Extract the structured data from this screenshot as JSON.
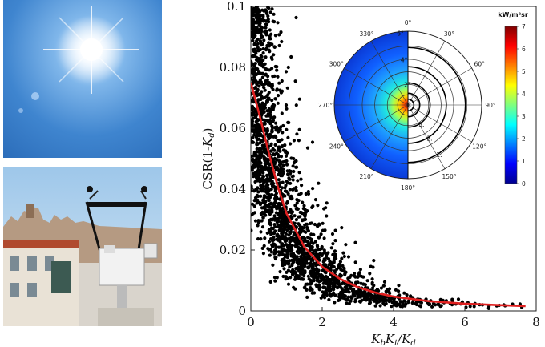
{
  "photos": [
    {
      "name": "sky-sun-photo"
    },
    {
      "name": "measurement-station-photo"
    }
  ],
  "chart_data": [
    {
      "type": "scatter",
      "xlabel": "K_b K_t / K_d",
      "ylabel": "CSR(1-K_d)",
      "xlim": [
        0,
        8
      ],
      "ylim": [
        0,
        0.1
      ],
      "x_ticks": [
        "0",
        "2",
        "4",
        "6",
        "8"
      ],
      "y_ticks": [
        "0",
        "0.02",
        "0.04",
        "0.06",
        "0.08",
        "0.1"
      ],
      "grid": false,
      "series": [
        {
          "kind": "points",
          "color": "#000000",
          "n_points": 2200,
          "description_of_distribution": "dense cloud decaying with x, spreading from ~0.1 near x=0 to ~0.002 at x=8"
        },
        {
          "kind": "fit-line",
          "color": "#e02020",
          "x": [
            0,
            0.25,
            0.5,
            0.75,
            1,
            1.5,
            2,
            2.5,
            3,
            3.5,
            4,
            5,
            6,
            7,
            7.7
          ],
          "y": [
            0.075,
            0.064,
            0.052,
            0.041,
            0.032,
            0.021,
            0.0145,
            0.0105,
            0.0078,
            0.006,
            0.0047,
            0.0032,
            0.0024,
            0.0019,
            0.0016
          ]
        }
      ]
    },
    {
      "type": "heatmap",
      "subtype": "polar",
      "angle_labels": [
        "0°",
        "30°",
        "60°",
        "90°",
        "120°",
        "150°",
        "180°",
        "210°",
        "240°",
        "270°",
        "300°",
        "330°"
      ],
      "radial_labels": [
        "1.",
        "2.",
        "3.",
        "2°",
        "4°",
        "6°"
      ],
      "colorbar": {
        "title": "kW/m²sr",
        "min": 0,
        "max": 7,
        "ticks": [
          "0",
          "1",
          "2",
          "3",
          "4",
          "5",
          "6",
          "7"
        ],
        "colormap": "jet"
      }
    }
  ]
}
